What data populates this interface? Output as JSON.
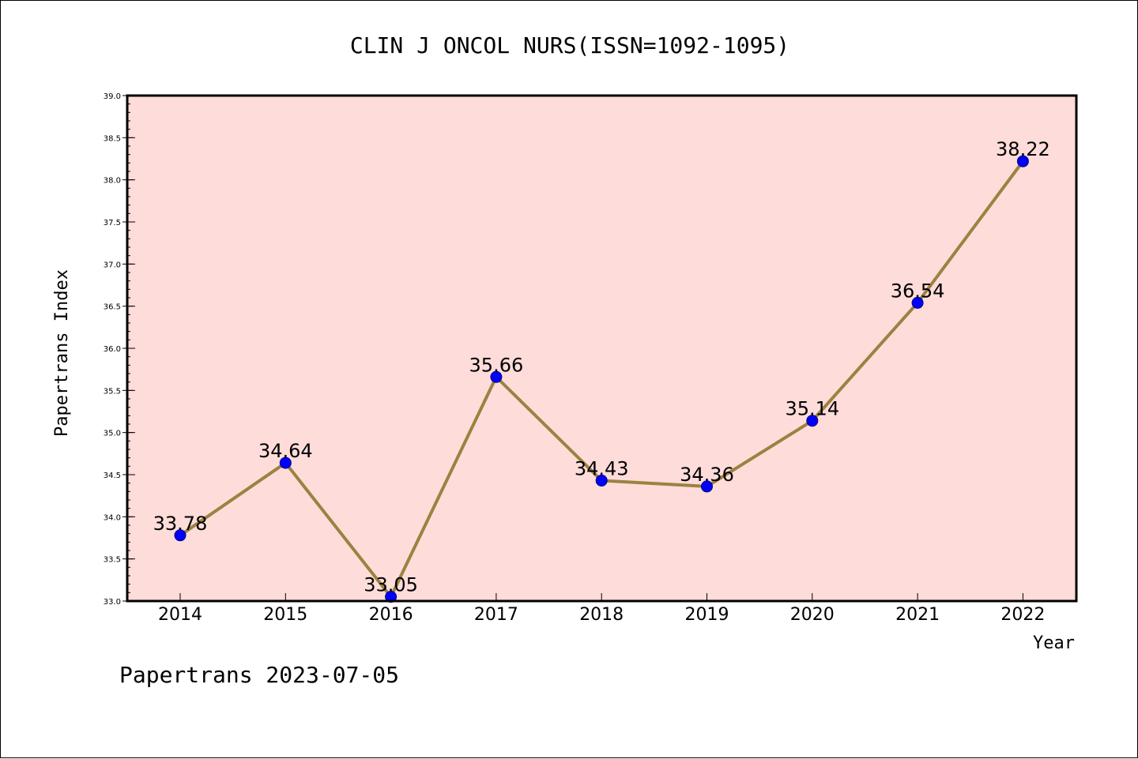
{
  "chart_data": {
    "type": "line",
    "title": "CLIN J ONCOL NURS(ISSN=1092-1095)",
    "xlabel": "Year",
    "ylabel": "Papertrans Index",
    "categories": [
      "2014",
      "2015",
      "2016",
      "2017",
      "2018",
      "2019",
      "2020",
      "2021",
      "2022"
    ],
    "values": [
      33.78,
      34.64,
      33.05,
      35.66,
      34.43,
      34.36,
      35.14,
      36.54,
      38.22
    ],
    "value_labels": [
      "33.78",
      "34.64",
      "33.05",
      "35.66",
      "34.43",
      "34.36",
      "35.14",
      "36.54",
      "38.22"
    ],
    "ylim": [
      33.0,
      39.0
    ],
    "yticks": [
      "33.0",
      "33.5",
      "34.0",
      "34.5",
      "35.0",
      "35.5",
      "36.0",
      "36.5",
      "37.0",
      "37.5",
      "38.0",
      "38.5",
      "39.0"
    ],
    "grid": false,
    "colors": {
      "plot_background": "#fddcda",
      "line": "#9b8240",
      "marker": "#0000ff"
    }
  },
  "footer": "Papertrans 2023-07-05"
}
